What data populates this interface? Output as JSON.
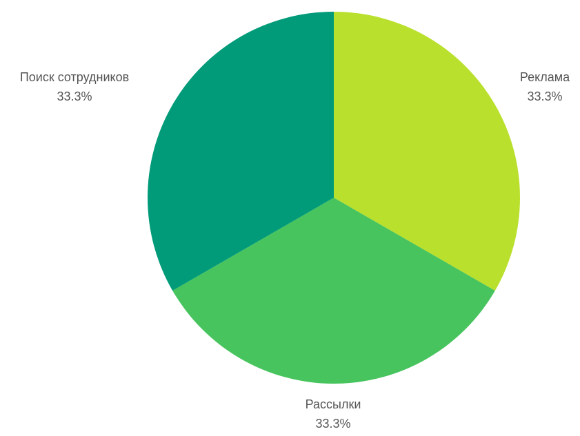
{
  "chart_data": {
    "type": "pie",
    "title": "",
    "slices": [
      {
        "label": "Реклама",
        "value": 33.3,
        "value_label": "33.3%",
        "color": "#BAE02E"
      },
      {
        "label": "Рассылки",
        "value": 33.3,
        "value_label": "33.3%",
        "color": "#47C45E"
      },
      {
        "label": "Поиск сотрудников",
        "value": 33.3,
        "value_label": "33.3%",
        "color": "#019B79"
      }
    ],
    "start_angle": "12 o'clock",
    "direction": "clockwise",
    "legend": "none",
    "labels": "outside"
  }
}
